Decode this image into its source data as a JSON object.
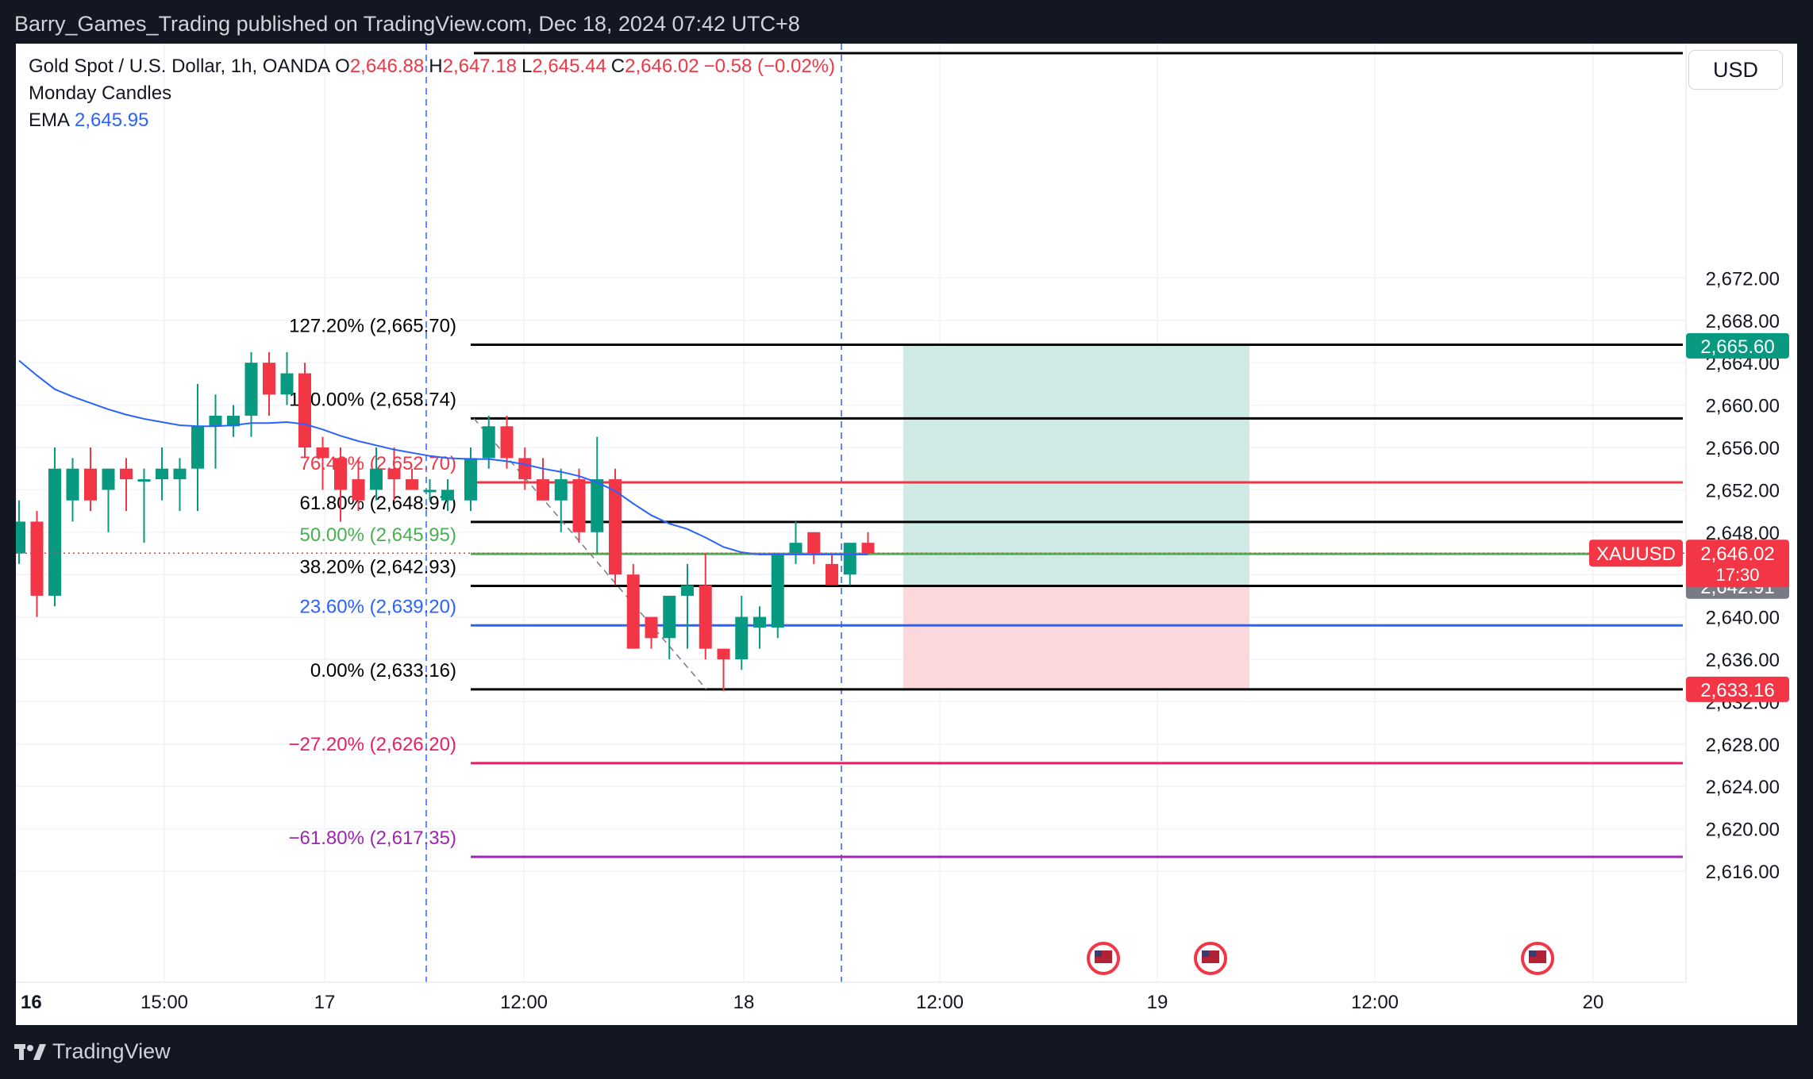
{
  "header": {
    "published_text": "Barry_Games_Trading published on TradingView.com, Dec 18, 2024 07:42 UTC+8"
  },
  "footer": {
    "brand": "TradingView"
  },
  "legend": {
    "symbol_text": "Gold Spot / U.S. Dollar, 1h, OANDA",
    "o_label": "O",
    "o_value": "2,646.88",
    "h_label": "H",
    "h_value": "2,647.18",
    "l_label": "L",
    "l_value": "2,645.44",
    "c_label": "C",
    "c_value": "2,646.02",
    "change": "−0.58 (−0.02%)",
    "indicator_1": "Monday Candles",
    "ema_label": "EMA",
    "ema_value": "2,645.95"
  },
  "currency_button": "USD",
  "colors": {
    "up": "#089981",
    "down": "#f23645",
    "ema": "#2962ff",
    "profit_zone": "#cfeae4",
    "loss_zone": "#fad8dc"
  },
  "chart_data": {
    "type": "candlestick",
    "symbol": "XAUUSD",
    "timeframe": "1h",
    "ylim": [
      2614,
      2674
    ],
    "y_ticks": [
      "2,616.00",
      "2,620.00",
      "2,624.00",
      "2,628.00",
      "2,632.00",
      "2,636.00",
      "2,640.00",
      "2,644.00",
      "2,648.00",
      "2,652.00",
      "2,656.00",
      "2,660.00",
      "2,664.00",
      "2,668.00",
      "2,672.00"
    ],
    "x_ticks": [
      "16",
      "15:00",
      "17",
      "12:00",
      "18",
      "12:00",
      "19",
      "12:00",
      "20"
    ],
    "candles": [
      {
        "o": 2646,
        "h": 2651,
        "l": 2645,
        "c": 2649
      },
      {
        "o": 2649,
        "h": 2650,
        "l": 2640,
        "c": 2642
      },
      {
        "o": 2642,
        "h": 2656,
        "l": 2641,
        "c": 2654
      },
      {
        "o": 2651,
        "h": 2655,
        "l": 2649,
        "c": 2654
      },
      {
        "o": 2654,
        "h": 2656,
        "l": 2650,
        "c": 2651
      },
      {
        "o": 2652,
        "h": 2654,
        "l": 2648,
        "c": 2654
      },
      {
        "o": 2654,
        "h": 2655,
        "l": 2650,
        "c": 2653
      },
      {
        "o": 2653,
        "h": 2654,
        "l": 2647,
        "c": 2653
      },
      {
        "o": 2653,
        "h": 2656,
        "l": 2651,
        "c": 2654
      },
      {
        "o": 2653,
        "h": 2655,
        "l": 2650,
        "c": 2654
      },
      {
        "o": 2654,
        "h": 2662,
        "l": 2650,
        "c": 2658
      },
      {
        "o": 2658,
        "h": 2661,
        "l": 2654,
        "c": 2659
      },
      {
        "o": 2658,
        "h": 2660,
        "l": 2657,
        "c": 2659
      },
      {
        "o": 2659,
        "h": 2665,
        "l": 2657,
        "c": 2664
      },
      {
        "o": 2664,
        "h": 2665,
        "l": 2659,
        "c": 2661
      },
      {
        "o": 2661,
        "h": 2665,
        "l": 2660,
        "c": 2663
      },
      {
        "o": 2663,
        "h": 2664,
        "l": 2655,
        "c": 2656
      },
      {
        "o": 2656,
        "h": 2657,
        "l": 2652,
        "c": 2655
      },
      {
        "o": 2655,
        "h": 2656,
        "l": 2649,
        "c": 2652
      },
      {
        "o": 2653,
        "h": 2655,
        "l": 2650,
        "c": 2651
      },
      {
        "o": 2652,
        "h": 2656,
        "l": 2651,
        "c": 2654
      },
      {
        "o": 2654,
        "h": 2656,
        "l": 2651,
        "c": 2653
      },
      {
        "o": 2653,
        "h": 2654,
        "l": 2652,
        "c": 2652
      },
      {
        "o": 2652,
        "h": 2653,
        "l": 2651,
        "c": 2652
      },
      {
        "o": 2651,
        "h": 2653,
        "l": 2650,
        "c": 2652
      },
      {
        "o": 2651,
        "h": 2656,
        "l": 2650,
        "c": 2655
      },
      {
        "o": 2655,
        "h": 2659,
        "l": 2654,
        "c": 2658
      },
      {
        "o": 2658,
        "h": 2659,
        "l": 2654,
        "c": 2655
      },
      {
        "o": 2655,
        "h": 2656,
        "l": 2652,
        "c": 2653
      },
      {
        "o": 2653,
        "h": 2655,
        "l": 2651,
        "c": 2651
      },
      {
        "o": 2651,
        "h": 2654,
        "l": 2648,
        "c": 2653
      },
      {
        "o": 2653,
        "h": 2654,
        "l": 2647,
        "c": 2648
      },
      {
        "o": 2648,
        "h": 2657,
        "l": 2646,
        "c": 2653
      },
      {
        "o": 2653,
        "h": 2654,
        "l": 2643,
        "c": 2644
      },
      {
        "o": 2644,
        "h": 2645,
        "l": 2637,
        "c": 2637
      },
      {
        "o": 2640,
        "h": 2640,
        "l": 2637,
        "c": 2638
      },
      {
        "o": 2638,
        "h": 2642,
        "l": 2636,
        "c": 2642
      },
      {
        "o": 2642,
        "h": 2645,
        "l": 2637,
        "c": 2643
      },
      {
        "o": 2643,
        "h": 2646,
        "l": 2636,
        "c": 2637
      },
      {
        "o": 2637,
        "h": 2637,
        "l": 2633,
        "c": 2636
      },
      {
        "o": 2636,
        "h": 2642,
        "l": 2635,
        "c": 2640
      },
      {
        "o": 2639,
        "h": 2641,
        "l": 2637,
        "c": 2640
      },
      {
        "o": 2639,
        "h": 2646,
        "l": 2638,
        "c": 2646
      },
      {
        "o": 2646,
        "h": 2649,
        "l": 2645,
        "c": 2647
      },
      {
        "o": 2648,
        "h": 2648,
        "l": 2645,
        "c": 2646
      },
      {
        "o": 2645,
        "h": 2646,
        "l": 2643,
        "c": 2643
      },
      {
        "o": 2644,
        "h": 2647,
        "l": 2643,
        "c": 2647
      },
      {
        "o": 2647,
        "h": 2648,
        "l": 2646,
        "c": 2646
      }
    ],
    "ema": [
      2664.2,
      2662.8,
      2661.5,
      2660.8,
      2660.2,
      2659.6,
      2659.1,
      2658.7,
      2658.4,
      2658.1,
      2658.0,
      2658.0,
      2658.1,
      2658.3,
      2658.3,
      2658.4,
      2658.2,
      2657.7,
      2657.1,
      2656.6,
      2656.2,
      2655.8,
      2655.5,
      2655.2,
      2655.0,
      2654.9,
      2654.9,
      2654.7,
      2654.4,
      2654.0,
      2653.7,
      2653.3,
      2652.7,
      2651.9,
      2650.7,
      2649.6,
      2648.8,
      2648.3,
      2647.5,
      2646.6,
      2646.1,
      2645.9,
      2645.9,
      2645.9,
      2645.9,
      2645.9,
      2645.9,
      2645.9
    ],
    "fibonacci": [
      {
        "label": "127.20% (2,665.70)",
        "price": 2665.7,
        "color": "#000000"
      },
      {
        "label": "100.00% (2,658.74)",
        "price": 2658.74,
        "color": "#000000"
      },
      {
        "label": "76.40% (2,652.70)",
        "price": 2652.7,
        "color": "#f23645"
      },
      {
        "label": "61.80% (2,648.97)",
        "price": 2648.97,
        "color": "#000000"
      },
      {
        "label": "50.00% (2,645.95)",
        "price": 2645.95,
        "color": "#4caf50"
      },
      {
        "label": "38.20% (2,642.93)",
        "price": 2642.93,
        "color": "#000000"
      },
      {
        "label": "23.60% (2,639.20)",
        "price": 2639.2,
        "color": "#2962ff"
      },
      {
        "label": "0.00% (2,633.16)",
        "price": 2633.16,
        "color": "#000000"
      },
      {
        "label": "−27.20% (2,626.20)",
        "price": 2626.2,
        "color": "#e91e63"
      },
      {
        "label": "−61.80% (2,617.35)",
        "price": 2617.35,
        "color": "#9c27b0"
      }
    ],
    "position": {
      "entry": 2642.91,
      "target": 2665.6,
      "stop": 2633.16
    },
    "price_labels": [
      {
        "text": "2,665.60",
        "price": 2665.6,
        "color": "#089981"
      },
      {
        "text": "2,642.91",
        "price": 2642.91,
        "color": "#787b86"
      },
      {
        "text": "2,633.16",
        "price": 2633.16,
        "color": "#f23645"
      }
    ],
    "last_price": {
      "symbol": "XAUUSD",
      "price_text": "2,646.02",
      "price": 2646.02,
      "countdown": "17:30"
    },
    "events": [
      "us-flag-icon",
      "us-flag-icon",
      "us-flag-icon"
    ]
  }
}
